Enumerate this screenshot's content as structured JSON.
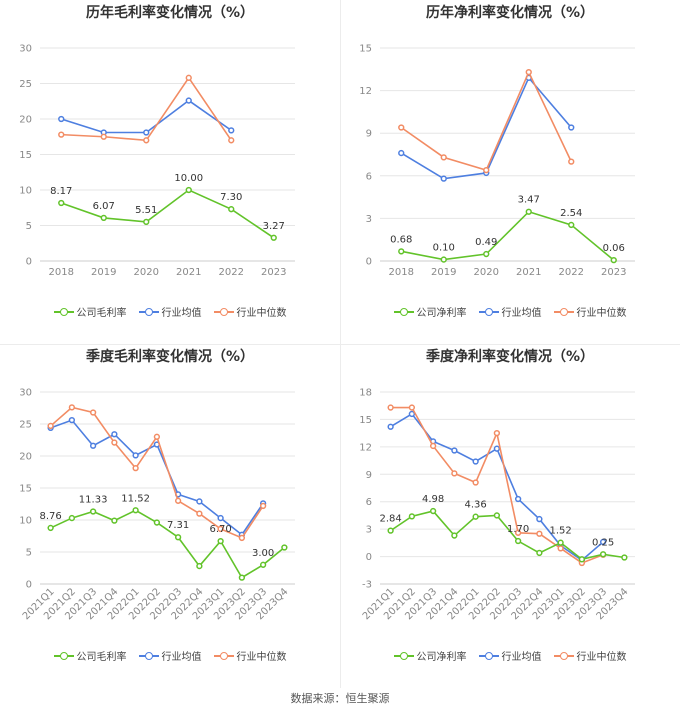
{
  "source": "数据来源：恒生聚源",
  "legend_labels": {
    "company_gross": "公司毛利率",
    "company_net": "公司净利率",
    "industry_avg": "行业均值",
    "industry_median": "行业中位数"
  },
  "colors": {
    "company": "#62c32a",
    "avg": "#4e7fe0",
    "median": "#f28c64",
    "grid": "#e6e6e6",
    "axis_text": "#888888"
  },
  "chart_data": [
    {
      "type": "line",
      "title": "历年毛利率变化情况（%）",
      "categories": [
        "2018",
        "2019",
        "2020",
        "2021",
        "2022",
        "2023"
      ],
      "ylim": [
        0,
        30
      ],
      "yticks": [
        0,
        5,
        10,
        15,
        20,
        25,
        30
      ],
      "series": [
        {
          "name": "公司毛利率",
          "values": [
            8.17,
            6.07,
            5.51,
            10.0,
            7.3,
            3.27
          ],
          "labels": [
            "8.17",
            "6.07",
            "5.51",
            "10.00",
            "7.30",
            "3.27"
          ]
        },
        {
          "name": "行业均值",
          "values": [
            20.0,
            18.1,
            18.1,
            22.6,
            18.4,
            null
          ]
        },
        {
          "name": "行业中位数",
          "values": [
            17.8,
            17.5,
            17.0,
            25.8,
            17.0,
            null
          ]
        }
      ]
    },
    {
      "type": "line",
      "title": "历年净利率变化情况（%）",
      "categories": [
        "2018",
        "2019",
        "2020",
        "2021",
        "2022",
        "2023"
      ],
      "ylim": [
        0,
        15
      ],
      "yticks": [
        0,
        3,
        6,
        9,
        12,
        15
      ],
      "series": [
        {
          "name": "公司净利率",
          "values": [
            0.68,
            0.1,
            0.49,
            3.47,
            2.54,
            0.06
          ],
          "labels": [
            "0.68",
            "0.10",
            "0.49",
            "3.47",
            "2.54",
            "0.06"
          ]
        },
        {
          "name": "行业均值",
          "values": [
            7.6,
            5.8,
            6.2,
            12.9,
            9.4,
            null
          ]
        },
        {
          "name": "行业中位数",
          "values": [
            9.4,
            7.3,
            6.4,
            13.3,
            7.0,
            null
          ]
        }
      ]
    },
    {
      "type": "line",
      "title": "季度毛利率变化情况（%）",
      "categories": [
        "2021Q1",
        "2021Q2",
        "2021Q3",
        "2021Q4",
        "2022Q1",
        "2022Q2",
        "2022Q3",
        "2022Q4",
        "2023Q1",
        "2023Q2",
        "2023Q3",
        "2023Q4"
      ],
      "ylim": [
        0,
        30
      ],
      "yticks": [
        0,
        5,
        10,
        15,
        20,
        25,
        30
      ],
      "series": [
        {
          "name": "公司毛利率",
          "values": [
            8.76,
            10.3,
            11.33,
            9.9,
            11.52,
            9.6,
            7.31,
            2.8,
            6.7,
            1.0,
            3.0,
            5.7
          ],
          "labels": [
            "8.76",
            null,
            "11.33",
            null,
            "11.52",
            null,
            "7.31",
            null,
            "6.70",
            null,
            "3.00",
            null
          ]
        },
        {
          "name": "行业均值",
          "values": [
            24.4,
            25.6,
            21.6,
            23.4,
            20.1,
            21.8,
            14.0,
            12.9,
            10.3,
            7.7,
            12.6,
            null
          ]
        },
        {
          "name": "行业中位数",
          "values": [
            24.7,
            27.6,
            26.8,
            22.1,
            18.1,
            23.0,
            13.0,
            11.0,
            8.6,
            7.2,
            12.2,
            null
          ]
        }
      ]
    },
    {
      "type": "line",
      "title": "季度净利率变化情况（%）",
      "categories": [
        "2021Q1",
        "2021Q2",
        "2021Q3",
        "2021Q4",
        "2022Q1",
        "2022Q2",
        "2022Q3",
        "2022Q4",
        "2023Q1",
        "2023Q2",
        "2023Q3",
        "2023Q4"
      ],
      "ylim": [
        -3,
        18
      ],
      "yticks": [
        -3,
        0,
        3,
        6,
        9,
        12,
        15,
        18
      ],
      "series": [
        {
          "name": "公司净利率",
          "values": [
            2.84,
            4.4,
            4.98,
            2.3,
            4.36,
            4.5,
            1.7,
            0.4,
            1.52,
            -0.3,
            0.25,
            -0.1
          ],
          "labels": [
            "2.84",
            null,
            "4.98",
            null,
            "4.36",
            null,
            "1.70",
            null,
            "1.52",
            null,
            "0.25",
            null
          ]
        },
        {
          "name": "行业均值",
          "values": [
            14.2,
            15.6,
            12.6,
            11.6,
            10.4,
            11.8,
            6.3,
            4.1,
            1.2,
            -0.4,
            1.6,
            null
          ]
        },
        {
          "name": "行业中位数",
          "values": [
            16.3,
            16.3,
            12.1,
            9.1,
            8.1,
            13.5,
            2.6,
            2.5,
            0.9,
            -0.7,
            0.2,
            null
          ]
        }
      ]
    }
  ]
}
